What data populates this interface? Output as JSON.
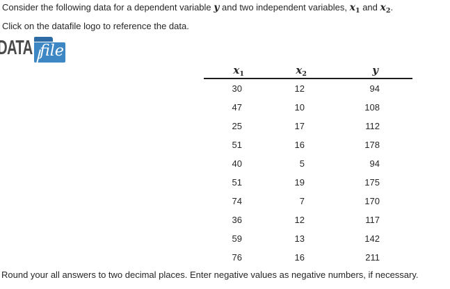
{
  "intro": {
    "part1": "Consider the following data for a dependent variable ",
    "part2": " and two independent variables, ",
    "part3": " and ",
    "part4": "."
  },
  "math": {
    "y": "y",
    "x": "x",
    "sub1": "1",
    "sub2": "2"
  },
  "instruction": "Click on the datafile logo to reference the data.",
  "logo": {
    "data_text": "DATA",
    "file_text": "file"
  },
  "table": {
    "headers": {
      "x1": {
        "base": "x",
        "sub": "1"
      },
      "x2": {
        "base": "x",
        "sub": "2"
      },
      "y": {
        "base": "y"
      }
    },
    "rows": [
      [
        30,
        12,
        94
      ],
      [
        47,
        10,
        108
      ],
      [
        25,
        17,
        112
      ],
      [
        51,
        16,
        178
      ],
      [
        40,
        5,
        94
      ],
      [
        51,
        19,
        175
      ],
      [
        74,
        7,
        170
      ],
      [
        36,
        12,
        117
      ],
      [
        59,
        13,
        142
      ],
      [
        76,
        16,
        211
      ]
    ]
  },
  "note": "Round your all answers to two decimal places. Enter negative values as negative numbers, if necessary.",
  "colors": {
    "folder_body": "#3c87c4",
    "folder_tab": "#2c6ba5",
    "logo_text": "#4b4b4b",
    "body_text": "#262626"
  }
}
